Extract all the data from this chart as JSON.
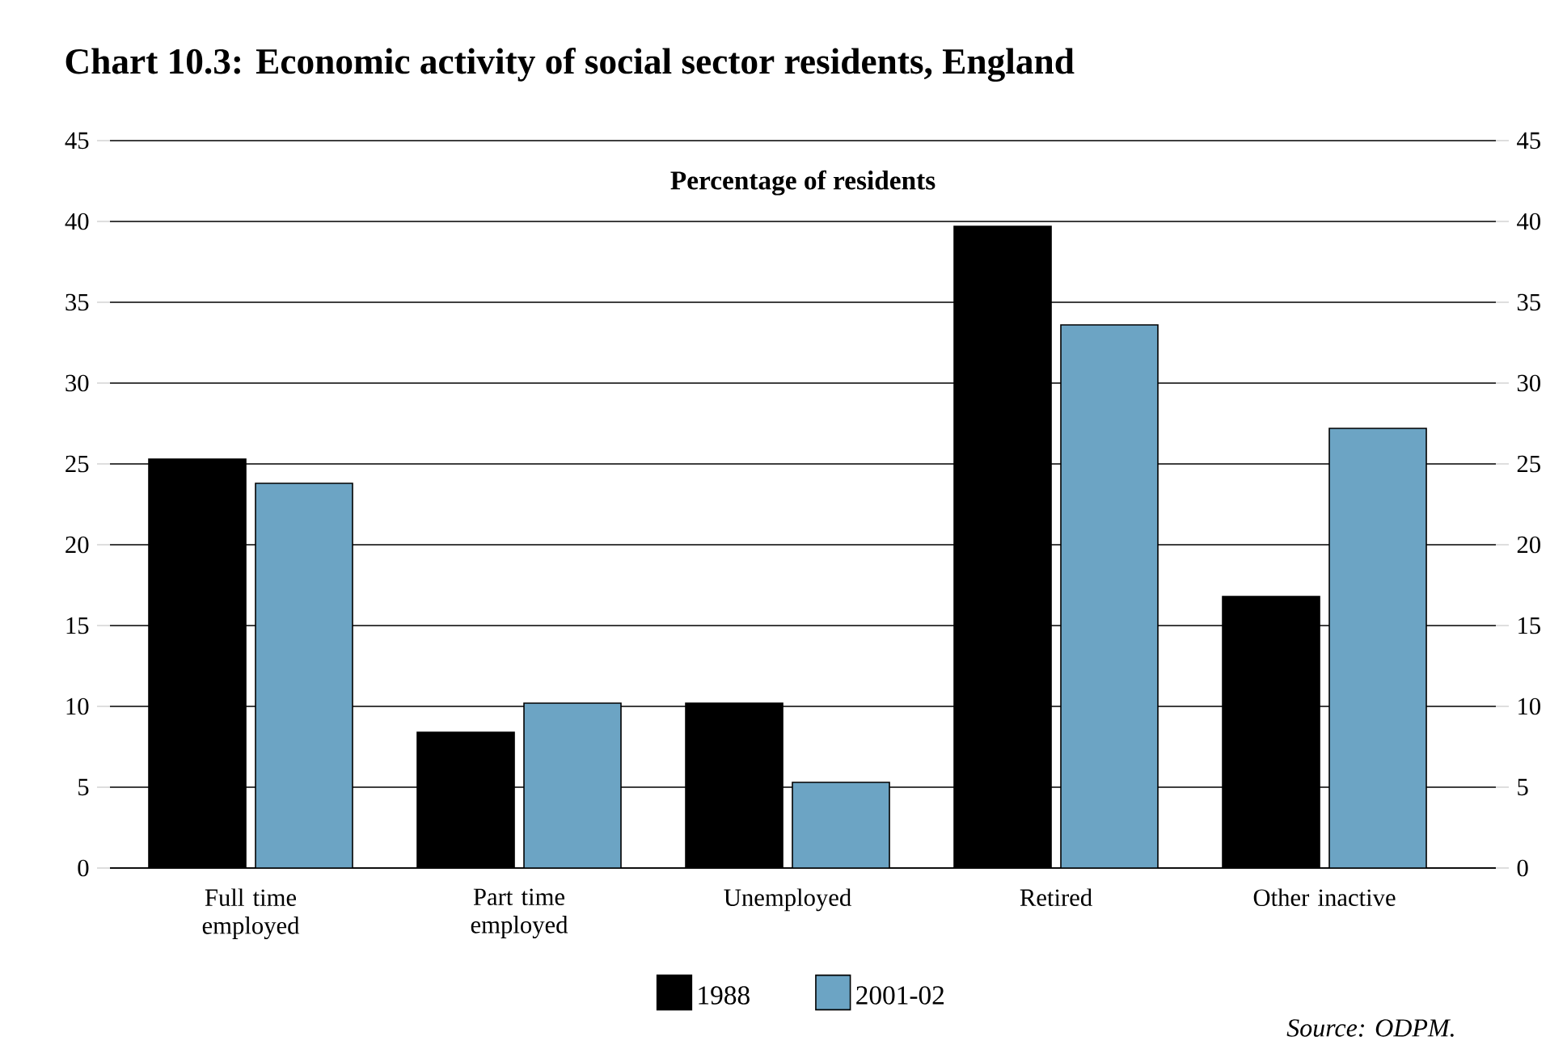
{
  "chart_data": {
    "type": "bar",
    "title": "Chart 10.3: Economic activity of social sector residents, England",
    "subtitle": "Percentage of residents",
    "categories": [
      "Full time employed",
      "Part time employed",
      "Unemployed",
      "Retired",
      "Other inactive"
    ],
    "series": [
      {
        "name": "1988",
        "color": "#000000",
        "values": [
          25.3,
          8.4,
          10.2,
          39.7,
          16.8
        ]
      },
      {
        "name": "2001-02",
        "color": "#6ca4c4",
        "values": [
          23.8,
          10.2,
          5.3,
          33.6,
          27.2
        ]
      }
    ],
    "ylim": [
      0,
      45
    ],
    "yticks": [
      0,
      5,
      10,
      15,
      20,
      25,
      30,
      35,
      40,
      45
    ],
    "y2lim": [
      0,
      45
    ],
    "y2ticks": [
      0,
      5,
      10,
      15,
      20,
      25,
      30,
      35,
      40,
      45
    ],
    "grid": "y",
    "legend": "bottom",
    "annotations": [
      "Source: ODPM."
    ]
  }
}
